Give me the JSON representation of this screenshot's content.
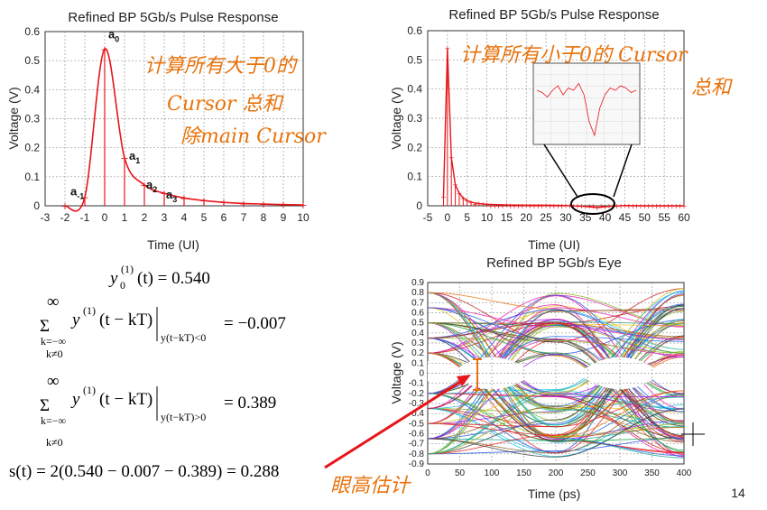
{
  "chart_data": [
    {
      "type": "line",
      "title": "Refined BP 5Gb/s Pulse Response",
      "xlabel": "Time (UI)",
      "ylabel": "Voltage (V)",
      "xlim": [
        -3,
        10
      ],
      "ylim": [
        0,
        0.6
      ],
      "xticks": [
        "-3",
        "-2",
        "-1",
        "0",
        "1",
        "2",
        "3",
        "4",
        "5",
        "6",
        "7",
        "8",
        "9",
        "10"
      ],
      "yticks": [
        "0",
        "0.1",
        "0.2",
        "0.3",
        "0.4",
        "0.5",
        "0.6"
      ],
      "grid": true,
      "x": [
        -2,
        -1,
        0,
        1,
        2,
        3,
        4,
        5,
        6,
        7,
        8,
        9,
        10
      ],
      "values": [
        0.0,
        0.03,
        0.54,
        0.165,
        0.072,
        0.043,
        0.027,
        0.018,
        0.012,
        0.008,
        0.006,
        0.004,
        0.003
      ],
      "cursor_labels": [
        {
          "base": "a",
          "sub": "-1"
        },
        {
          "base": "a",
          "sub": "0"
        },
        {
          "base": "a",
          "sub": "1"
        },
        {
          "base": "a",
          "sub": "2"
        },
        {
          "base": "a",
          "sub": "3"
        }
      ]
    },
    {
      "type": "line",
      "title": "Refined BP 5Gb/s Pulse Response",
      "xlabel": "Time (UI)",
      "ylabel": "Voltage (V)",
      "xlim": [
        -5,
        60
      ],
      "ylim": [
        0,
        0.6
      ],
      "xticks": [
        "-5",
        "0",
        "5",
        "10",
        "15",
        "20",
        "25",
        "30",
        "35",
        "40",
        "45",
        "50",
        "55",
        "60"
      ],
      "yticks": [
        "0",
        "0.1",
        "0.2",
        "0.3",
        "0.4",
        "0.5",
        "0.6"
      ],
      "grid": true,
      "x": [
        -1,
        0,
        1,
        2,
        3,
        4,
        5,
        6,
        8,
        10,
        15,
        20,
        25,
        30,
        35,
        38,
        40,
        45,
        50
      ],
      "values": [
        0.03,
        0.54,
        0.165,
        0.072,
        0.043,
        0.027,
        0.018,
        0.012,
        0.008,
        0.005,
        0.003,
        0.002,
        0.002,
        0.001,
        -0.002,
        -0.006,
        -0.003,
        0.001,
        0.0
      ],
      "inset": true
    },
    {
      "type": "line",
      "title": "Refined BP 5Gb/s Eye",
      "xlabel": "Time (ps)",
      "ylabel": "Voltage (V)",
      "xlim": [
        0,
        400
      ],
      "ylim": [
        -0.9,
        0.9
      ],
      "xticks": [
        "0",
        "50",
        "100",
        "150",
        "200",
        "250",
        "300",
        "350",
        "400"
      ],
      "yticks": [
        "-0.9",
        "-0.8",
        "-0.7",
        "-0.6",
        "-0.5",
        "-0.4",
        "-0.3",
        "-0.2",
        "-0.1",
        "0",
        "0.1",
        "0.2",
        "0.3",
        "0.4",
        "0.5",
        "0.6",
        "0.7",
        "0.8",
        "0.9"
      ],
      "grid": true
    }
  ],
  "annotations": {
    "note_top_left": "计算所有大于0的",
    "note_top_left_2": "Cursor 总和",
    "note_top_left_3": "除main Cursor",
    "note_top_right": "计算所有小于0的 Cursor",
    "note_top_right_2": "总和",
    "note_bottom": "眼高估计"
  },
  "equations": {
    "eq1_lhs": "y",
    "eq1_sup": "(1)",
    "eq1_sub": "0",
    "eq1_arg": "(t) = 0.540",
    "eq2_sum_top": "∞",
    "eq2_sum_bottom": "k=−∞",
    "eq2_sum_bottom2": "k≠0",
    "eq2_body": "y",
    "eq2_sup": "(1)",
    "eq2_arg": "(t − kT)",
    "eq2_cond": "y(t−kT)<0",
    "eq2_rhs": "= −0.007",
    "eq3_sum_top": "∞",
    "eq3_sum_bottom": "k=−∞",
    "eq3_sum_bottom2": "k≠0",
    "eq3_body": "y",
    "eq3_sup": "(1)",
    "eq3_arg": "(t − kT)",
    "eq3_cond": "y(t−kT)>0",
    "eq3_rhs": "= 0.389",
    "eq4": "s(t) = 2(0.540 − 0.007 − 0.389) = 0.288"
  },
  "page_number": "14",
  "colors": {
    "curve": "#e8141a",
    "annotation": "#e8730c",
    "arrow": "#e8141a",
    "grid": "#999999"
  }
}
